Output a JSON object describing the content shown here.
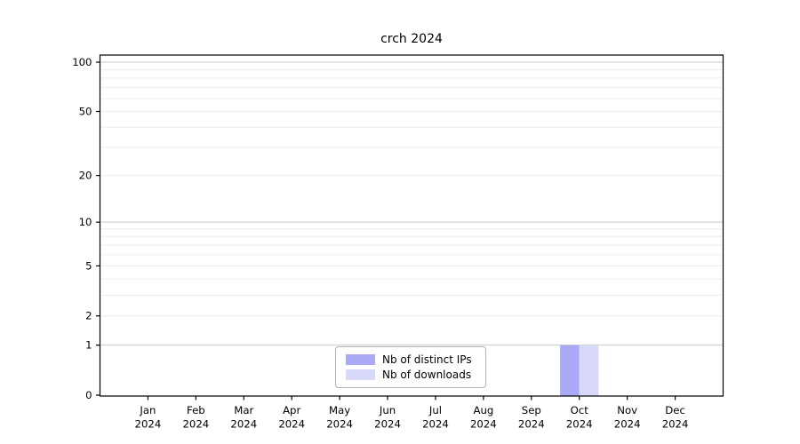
{
  "chart_data": {
    "type": "bar",
    "title": "crch 2024",
    "categories": [
      "Jan 2024",
      "Feb 2024",
      "Mar 2024",
      "Apr 2024",
      "May 2024",
      "Jun 2024",
      "Jul 2024",
      "Aug 2024",
      "Sep 2024",
      "Oct 2024",
      "Nov 2024",
      "Dec 2024"
    ],
    "series": [
      {
        "name": "Nb of distinct IPs",
        "color": "#a9a9f5",
        "values": [
          0,
          0,
          0,
          0,
          0,
          0,
          0,
          0,
          0,
          1,
          0,
          0
        ]
      },
      {
        "name": "Nb of downloads",
        "color": "#d8d8f9",
        "values": [
          0,
          0,
          0,
          0,
          0,
          0,
          0,
          0,
          0,
          1,
          0,
          0
        ]
      }
    ],
    "xlabel": "",
    "ylabel": "",
    "yscale": "log1p",
    "ylim": [
      0,
      110
    ],
    "ytick_labels": [
      100,
      50,
      20,
      10,
      5,
      2,
      1,
      0
    ],
    "major_gridlines": [
      1,
      10,
      100
    ],
    "minor_gridlines": [
      2,
      3,
      4,
      5,
      6,
      7,
      8,
      9,
      20,
      30,
      40,
      50,
      60,
      70,
      80,
      90
    ],
    "grid": "horizontal",
    "legend_position": "lower center"
  },
  "colors": {
    "axis": "#000000",
    "tick_label": "#000000",
    "major_grid": "#c9c9c9",
    "minor_grid": "#ececec",
    "legend_border": "#b3b3b3",
    "background": "#ffffff"
  }
}
